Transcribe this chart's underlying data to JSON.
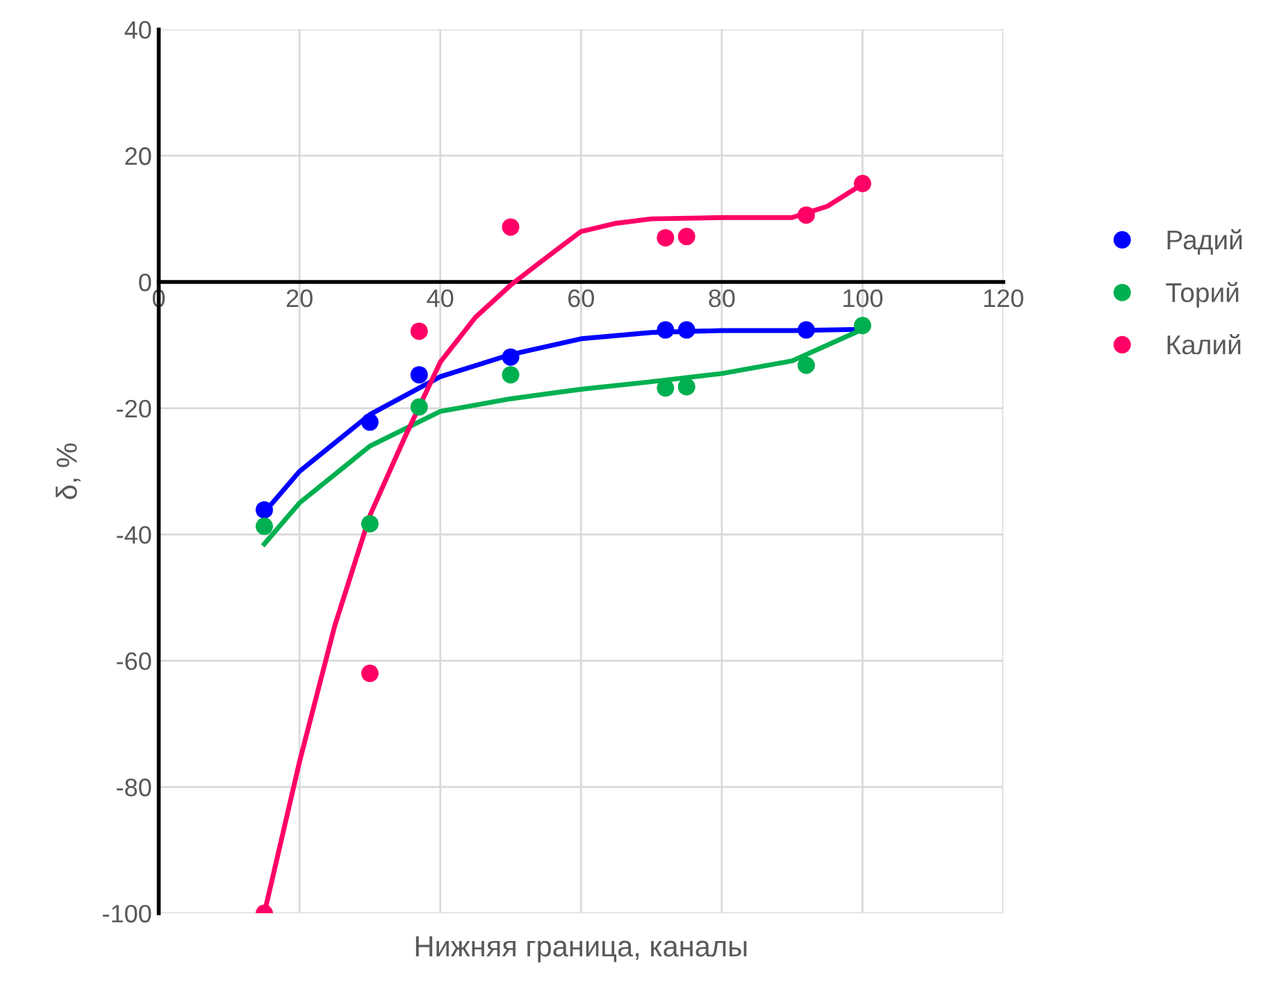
{
  "chart_data": {
    "type": "scatter",
    "xlabel": "Нижняя граница, каналы",
    "ylabel": "δ, %",
    "xlim": [
      0,
      120
    ],
    "ylim": [
      -100,
      40
    ],
    "xticks": [
      0,
      20,
      40,
      60,
      80,
      100,
      120
    ],
    "yticks": [
      -100,
      -80,
      -60,
      -40,
      -20,
      0,
      20,
      40
    ],
    "grid": true,
    "legend": "right",
    "series": [
      {
        "name": "Радий",
        "marker": "circle",
        "color": "#0000ff",
        "x": [
          15,
          30,
          37,
          50,
          72,
          75,
          92
        ],
        "values": [
          -36.1,
          -22.2,
          -14.7,
          -11.9,
          -7.6,
          -7.6,
          -7.6
        ]
      },
      {
        "name": "Торий",
        "marker": "circle",
        "color": "#00b050",
        "x": [
          15,
          30,
          37,
          50,
          72,
          75,
          92,
          100
        ],
        "values": [
          -38.7,
          -38.3,
          -19.8,
          -14.7,
          -16.8,
          -16.6,
          -13.2,
          -6.9
        ]
      },
      {
        "name": "Калий",
        "marker": "circle",
        "color": "#ff0066",
        "x": [
          15,
          30,
          37,
          50,
          72,
          75,
          92,
          100
        ],
        "values": [
          -100,
          -62,
          -7.8,
          8.7,
          7.0,
          7.2,
          10.6,
          15.6
        ]
      },
      {
        "type": "line",
        "color": "#0000ff",
        "line_style": "solid",
        "x": [
          15,
          20,
          30,
          40,
          50,
          60,
          70,
          80,
          90,
          100
        ],
        "values": [
          -36.5,
          -30,
          -21,
          -15,
          -11.5,
          -9,
          -8,
          -7.7,
          -7.7,
          -7.5
        ]
      },
      {
        "type": "line",
        "color": "#00b050",
        "line_style": "solid",
        "x": [
          15,
          20,
          30,
          40,
          50,
          60,
          70,
          80,
          90,
          100
        ],
        "values": [
          -41.5,
          -35,
          -26,
          -20.5,
          -18.5,
          -17,
          -15.8,
          -14.5,
          -12.5,
          -7.5
        ]
      },
      {
        "type": "line",
        "color": "#ff0066",
        "line_style": "solid",
        "x": [
          15,
          20,
          25,
          30,
          35,
          40,
          45,
          50,
          55,
          60,
          65,
          70,
          80,
          90,
          95,
          100
        ],
        "values": [
          -100,
          -76,
          -54.5,
          -37,
          -24.5,
          -12.7,
          -5.6,
          -0.5,
          3.8,
          8,
          9.3,
          10,
          10.2,
          10.2,
          12,
          15.5
        ]
      }
    ]
  }
}
